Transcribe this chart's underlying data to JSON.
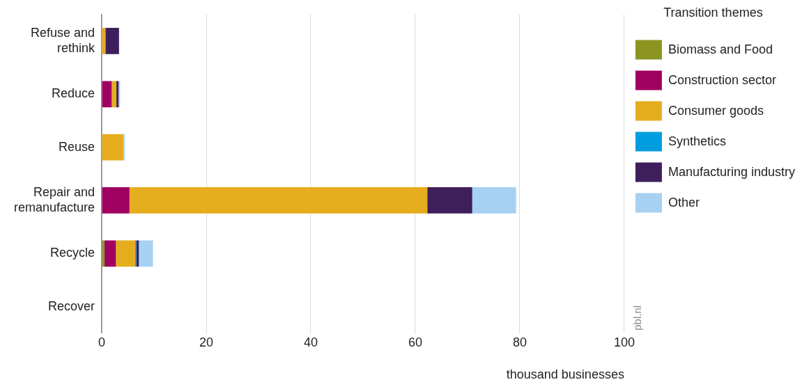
{
  "chart_data": {
    "type": "bar",
    "orientation": "horizontal",
    "stacked": true,
    "categories": [
      "Refuse and rethink",
      "Reduce",
      "Reuse",
      "Repair and remanufacture",
      "Recycle",
      "Recover"
    ],
    "series": [
      {
        "name": "Biomass and Food",
        "color": "#8c9520",
        "values": [
          0,
          0,
          0,
          0,
          0.5,
          0
        ]
      },
      {
        "name": "Construction sector",
        "color": "#a0005f",
        "values": [
          0,
          1.9,
          0,
          5.3,
          2.2,
          0
        ]
      },
      {
        "name": "Consumer goods",
        "color": "#e5ac1e",
        "values": [
          0.7,
          0.9,
          4.1,
          57.0,
          3.7,
          0
        ]
      },
      {
        "name": "Synthetics",
        "color": "#009ee0",
        "values": [
          0,
          0,
          0,
          0,
          0.2,
          0
        ]
      },
      {
        "name": "Manufacturing industry",
        "color": "#3e1f5c",
        "values": [
          2.6,
          0.4,
          0,
          8.6,
          0.5,
          0
        ]
      },
      {
        "name": "Other",
        "color": "#a6d1f2",
        "values": [
          0,
          0.3,
          0.3,
          8.4,
          2.7,
          0
        ]
      }
    ],
    "xlabel": "thousand businesses",
    "legend_title": "Transition themes",
    "legend": "right",
    "xlim": [
      0,
      100
    ],
    "xticks": [
      0,
      20,
      40,
      60,
      80,
      100
    ],
    "grid": "x",
    "annotations": [
      "pbl.nl"
    ]
  }
}
